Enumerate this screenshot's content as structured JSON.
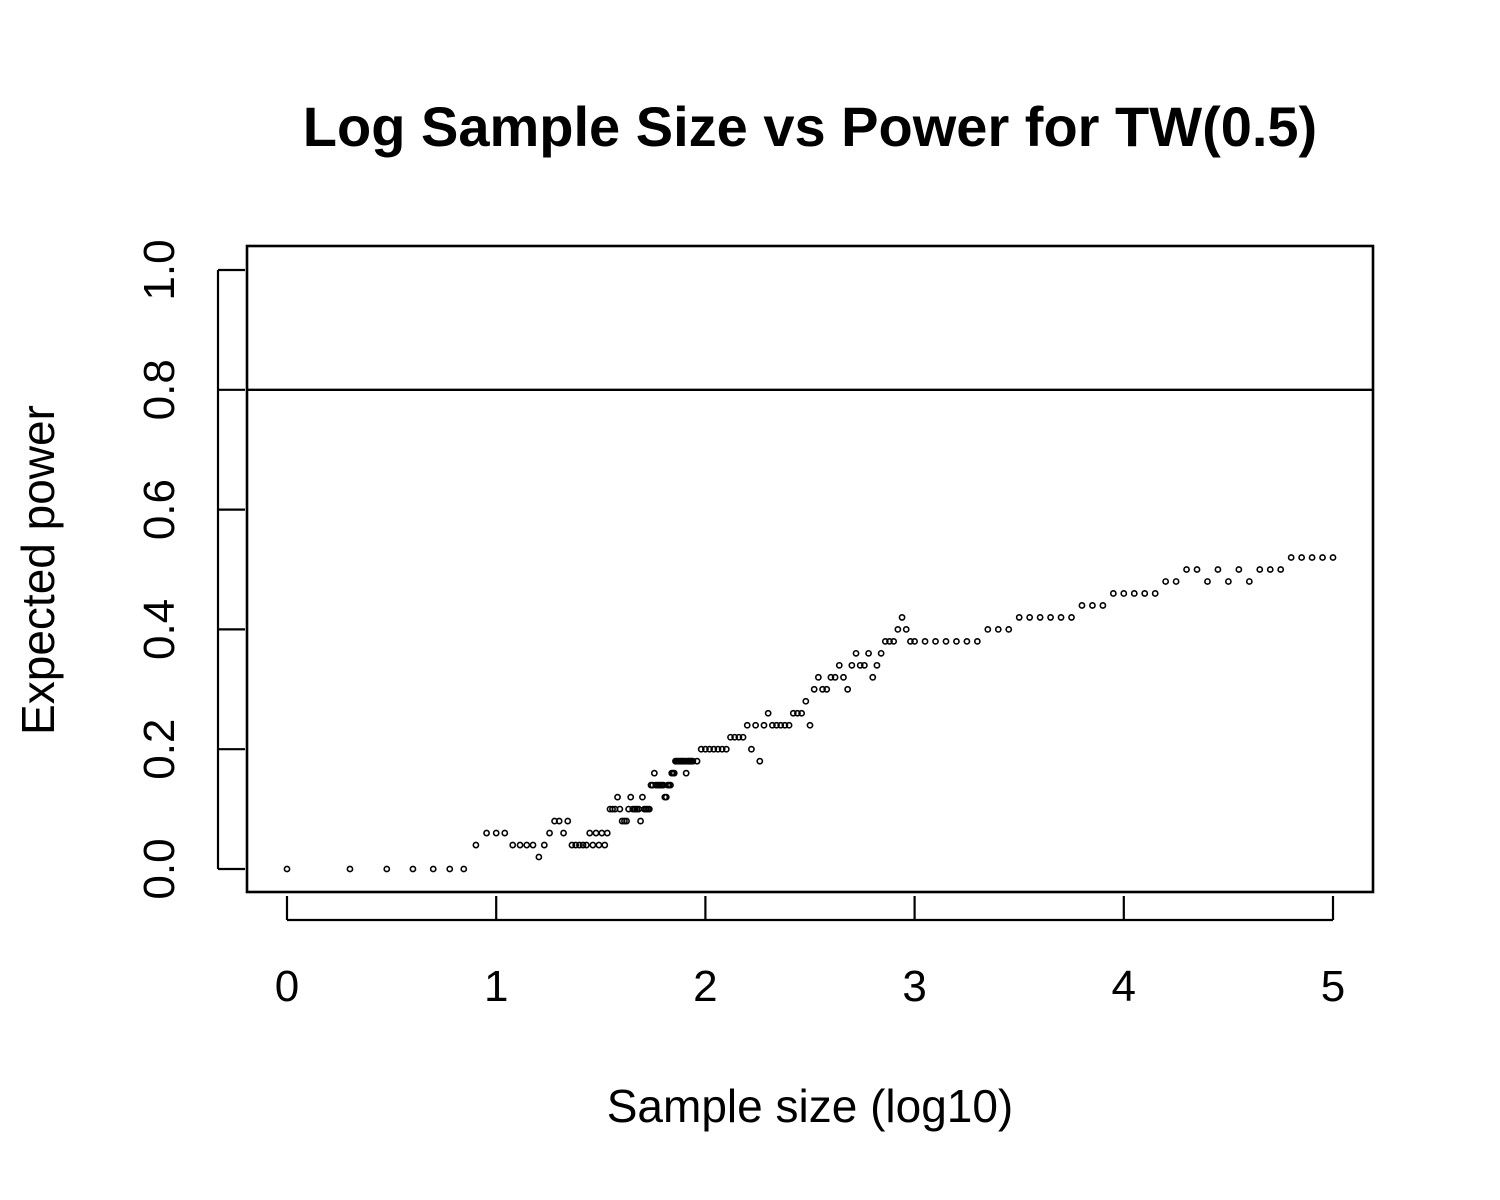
{
  "chart_data": {
    "type": "scatter",
    "title": "Log Sample Size vs Power for TW(0.5)",
    "xlabel": "Sample size (log10)",
    "ylabel": "Expected power",
    "xlim": [
      0,
      5
    ],
    "ylim": [
      0,
      1
    ],
    "x_ticks": [
      0,
      1,
      2,
      3,
      4,
      5
    ],
    "y_ticks": [
      0.0,
      0.2,
      0.4,
      0.6,
      0.8,
      1.0
    ],
    "x_tick_labels": [
      "0",
      "1",
      "2",
      "3",
      "4",
      "5"
    ],
    "y_tick_labels": [
      "0.0",
      "0.2",
      "0.4",
      "0.6",
      "0.8",
      "1.0"
    ],
    "reference_line": {
      "orientation": "horizontal",
      "y": 0.8
    },
    "grid": false,
    "legend": "none",
    "series": [
      {
        "point_style": "open-circle",
        "x": [
          0,
          0.301,
          0.477,
          0.602,
          0.699,
          0.778,
          0.845,
          0.903,
          0.954,
          1.0,
          1.041,
          1.079,
          1.114,
          1.146,
          1.176,
          1.204,
          1.23,
          1.255,
          1.279,
          1.301,
          1.322,
          1.342,
          1.362,
          1.38,
          1.398,
          1.415,
          1.431,
          1.447,
          1.462,
          1.477,
          1.491,
          1.505,
          1.519,
          1.531,
          1.544,
          1.556,
          1.568,
          1.58,
          1.591,
          1.602,
          1.613,
          1.623,
          1.633,
          1.643,
          1.653,
          1.663,
          1.672,
          1.681,
          1.69,
          1.699,
          1.708,
          1.716,
          1.724,
          1.732,
          1.74,
          1.748,
          1.756,
          1.763,
          1.771,
          1.778,
          1.785,
          1.792,
          1.799,
          1.806,
          1.813,
          1.82,
          1.826,
          1.833,
          1.839,
          1.845,
          1.851,
          1.857,
          1.863,
          1.869,
          1.875,
          1.881,
          1.887,
          1.892,
          1.898,
          1.903,
          1.908,
          1.914,
          1.919,
          1.924,
          1.929,
          1.934,
          1.94,
          1.96,
          1.98,
          2.0,
          2.02,
          2.04,
          2.06,
          2.08,
          2.1,
          2.12,
          2.14,
          2.16,
          2.18,
          2.2,
          2.22,
          2.24,
          2.26,
          2.28,
          2.3,
          2.32,
          2.34,
          2.36,
          2.38,
          2.4,
          2.42,
          2.44,
          2.46,
          2.48,
          2.5,
          2.52,
          2.54,
          2.56,
          2.58,
          2.6,
          2.62,
          2.64,
          2.66,
          2.68,
          2.7,
          2.72,
          2.74,
          2.76,
          2.78,
          2.8,
          2.82,
          2.84,
          2.86,
          2.88,
          2.9,
          2.92,
          2.94,
          2.96,
          2.98,
          3.0,
          3.05,
          3.1,
          3.15,
          3.2,
          3.25,
          3.3,
          3.35,
          3.4,
          3.45,
          3.5,
          3.55,
          3.6,
          3.65,
          3.7,
          3.75,
          3.8,
          3.85,
          3.9,
          3.95,
          4.0,
          4.05,
          4.1,
          4.15,
          4.2,
          4.25,
          4.3,
          4.35,
          4.4,
          4.45,
          4.5,
          4.55,
          4.6,
          4.65,
          4.7,
          4.75,
          4.8,
          4.85,
          4.9,
          4.95,
          5.0
        ],
        "y": [
          0.0,
          0.0,
          0.0,
          0.0,
          0.0,
          0.0,
          0.0,
          0.04,
          0.06,
          0.06,
          0.06,
          0.04,
          0.04,
          0.04,
          0.04,
          0.02,
          0.04,
          0.06,
          0.08,
          0.08,
          0.06,
          0.08,
          0.04,
          0.04,
          0.04,
          0.04,
          0.04,
          0.06,
          0.04,
          0.06,
          0.04,
          0.06,
          0.04,
          0.06,
          0.1,
          0.1,
          0.1,
          0.12,
          0.1,
          0.08,
          0.08,
          0.08,
          0.1,
          0.12,
          0.1,
          0.1,
          0.1,
          0.1,
          0.08,
          0.12,
          0.1,
          0.1,
          0.1,
          0.1,
          0.14,
          0.14,
          0.16,
          0.14,
          0.14,
          0.14,
          0.14,
          0.14,
          0.14,
          0.12,
          0.12,
          0.14,
          0.14,
          0.14,
          0.16,
          0.16,
          0.16,
          0.18,
          0.18,
          0.18,
          0.18,
          0.18,
          0.18,
          0.18,
          0.18,
          0.18,
          0.16,
          0.18,
          0.18,
          0.18,
          0.18,
          0.18,
          0.18,
          0.18,
          0.2,
          0.2,
          0.2,
          0.2,
          0.2,
          0.2,
          0.2,
          0.22,
          0.22,
          0.22,
          0.22,
          0.24,
          0.2,
          0.24,
          0.18,
          0.24,
          0.26,
          0.24,
          0.24,
          0.24,
          0.24,
          0.24,
          0.26,
          0.26,
          0.26,
          0.28,
          0.24,
          0.3,
          0.32,
          0.3,
          0.3,
          0.32,
          0.32,
          0.34,
          0.32,
          0.3,
          0.34,
          0.36,
          0.34,
          0.34,
          0.36,
          0.32,
          0.34,
          0.36,
          0.38,
          0.38,
          0.38,
          0.4,
          0.42,
          0.4,
          0.38,
          0.38,
          0.38,
          0.38,
          0.38,
          0.38,
          0.38,
          0.38,
          0.4,
          0.4,
          0.4,
          0.42,
          0.42,
          0.42,
          0.42,
          0.42,
          0.42,
          0.44,
          0.44,
          0.44,
          0.46,
          0.46,
          0.46,
          0.46,
          0.46,
          0.48,
          0.48,
          0.5,
          0.5,
          0.48,
          0.5,
          0.48,
          0.5,
          0.48,
          0.5,
          0.5,
          0.5,
          0.52,
          0.52,
          0.52,
          0.52,
          0.52
        ]
      }
    ]
  }
}
